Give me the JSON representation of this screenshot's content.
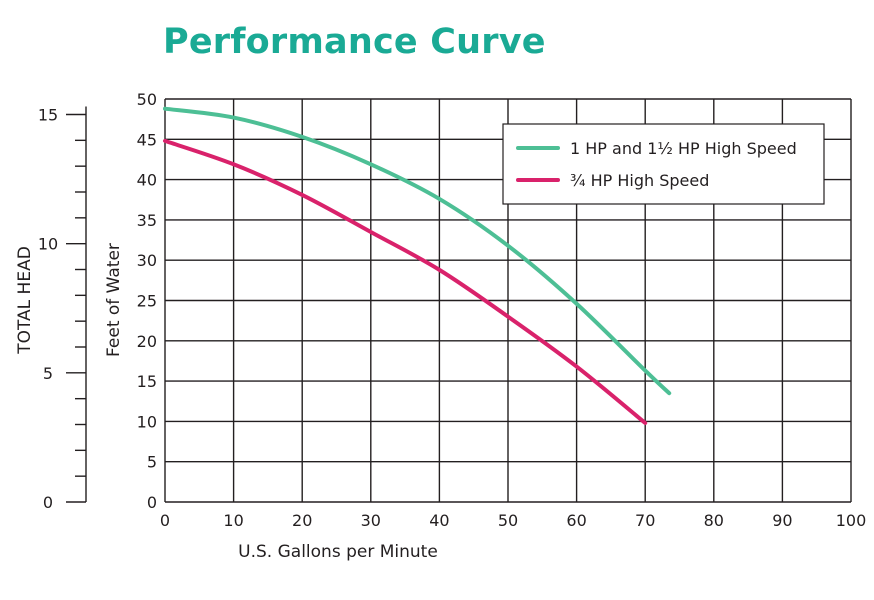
{
  "title": "Performance Curve",
  "title_color": "#1aaa95",
  "chart_data": {
    "type": "line",
    "title": "Performance Curve",
    "xlabel": "U.S. Gallons per Minute",
    "ylabel": "Feet of Water",
    "secondary_ylabel": "TOTAL HEAD",
    "xlim": [
      0,
      100
    ],
    "ylim": [
      0,
      50
    ],
    "secondary_ylim": [
      0,
      15
    ],
    "x_ticks": [
      "0",
      "10",
      "20",
      "30",
      "40",
      "50",
      "60",
      "70",
      "80",
      "90",
      "100"
    ],
    "y_ticks": [
      "0",
      "5",
      "10",
      "15",
      "20",
      "25",
      "30",
      "35",
      "40",
      "45",
      "50"
    ],
    "secondary_y_ticks": [
      "0",
      "5",
      "10",
      "15"
    ],
    "grid": true,
    "legend_position": "top-right",
    "series": [
      {
        "name": "1 HP and 1½ HP High Speed",
        "color": "#4dbf95",
        "x": [
          0,
          10,
          20,
          30,
          40,
          50,
          60,
          70,
          73.5
        ],
        "y": [
          48.8,
          47.7,
          45.3,
          41.9,
          37.6,
          31.8,
          24.6,
          16.3,
          13.5
        ]
      },
      {
        "name": "¾ HP High Speed",
        "color": "#d9226b",
        "x": [
          0,
          10,
          20,
          30,
          40,
          50,
          60,
          70
        ],
        "y": [
          44.8,
          41.9,
          38.1,
          33.5,
          28.8,
          23.0,
          16.8,
          9.8
        ]
      }
    ]
  }
}
